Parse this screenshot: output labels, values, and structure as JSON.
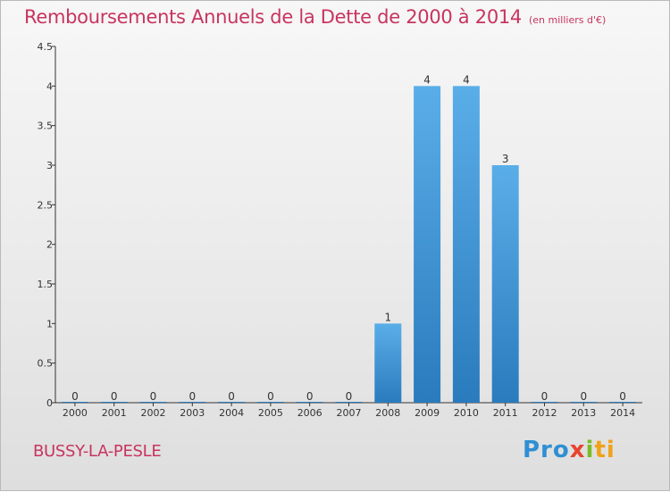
{
  "title": "Remboursements Annuels de la Dette de 2000 à 2014",
  "unit_note": "(en milliers d'€)",
  "place_name": "BUSSY-LA-PESLE",
  "logo": {
    "letters": [
      "Pro",
      "x",
      "i",
      "ti"
    ]
  },
  "colors": {
    "title": "#c8345e",
    "bar_top": "#5aaee8",
    "bar_bottom": "#2a7bbd"
  },
  "chart_data": {
    "type": "bar",
    "categories": [
      "2000",
      "2001",
      "2002",
      "2003",
      "2004",
      "2005",
      "2006",
      "2007",
      "2008",
      "2009",
      "2010",
      "2011",
      "2012",
      "2013",
      "2014"
    ],
    "values": [
      0,
      0,
      0,
      0,
      0,
      0,
      0,
      0,
      1,
      4,
      4,
      3,
      0,
      0,
      0
    ],
    "value_labels": [
      "0",
      "0",
      "0",
      "0",
      "0",
      "0",
      "0",
      "0",
      "1",
      "4",
      "4",
      "3",
      "0",
      "0",
      "0"
    ],
    "y_ticks": [
      "0",
      "0.5",
      "1",
      "1.5",
      "2",
      "2.5",
      "3",
      "3.5",
      "4",
      "4.5"
    ],
    "ylim": [
      0,
      4.5
    ],
    "grid": false,
    "legend": "none"
  }
}
